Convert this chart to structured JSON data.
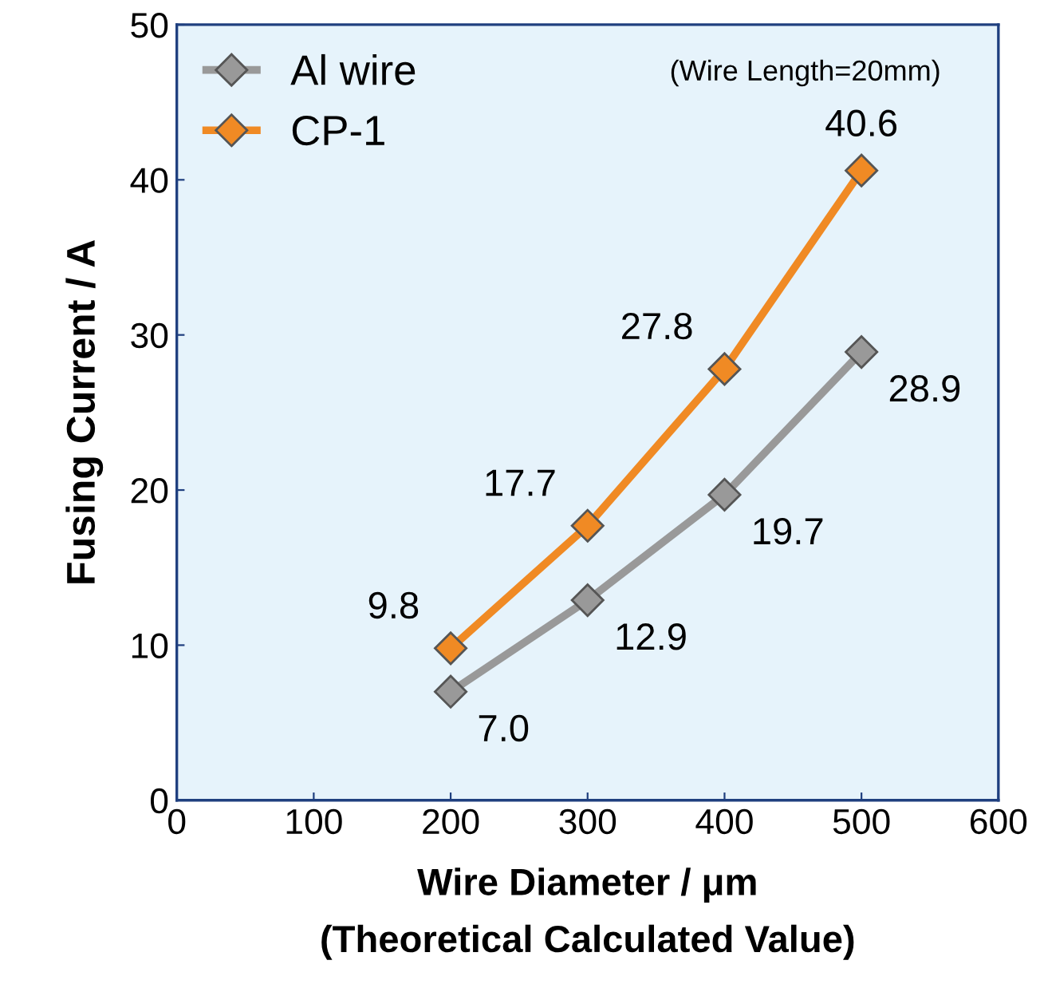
{
  "chart_data": {
    "type": "line",
    "xlabel": "Wire Diameter / μm\n(Theoretical Calculated Value)",
    "ylabel": "Fusing Current / A",
    "x": [
      200,
      300,
      400,
      500
    ],
    "series": [
      {
        "name": "Al wire",
        "color": "#999999",
        "values": [
          7.0,
          12.9,
          19.7,
          28.9
        ],
        "value_labels": [
          "7.0",
          "12.9",
          "19.7",
          "28.9"
        ]
      },
      {
        "name": "CP-1",
        "color": "#f08a24",
        "values": [
          9.8,
          17.7,
          27.8,
          40.6
        ],
        "value_labels": [
          "9.8",
          "17.7",
          "27.8",
          "40.6"
        ]
      }
    ],
    "xlim": [
      0,
      600
    ],
    "xticks": [
      0,
      100,
      200,
      300,
      400,
      500,
      600
    ],
    "ylim": [
      0,
      50
    ],
    "yticks": [
      0,
      10,
      20,
      30,
      40,
      50
    ],
    "annotations": [
      "(Wire Length=20mm)"
    ],
    "marker": "diamond",
    "line_style": "solid",
    "legend": "top left",
    "grid": false
  }
}
